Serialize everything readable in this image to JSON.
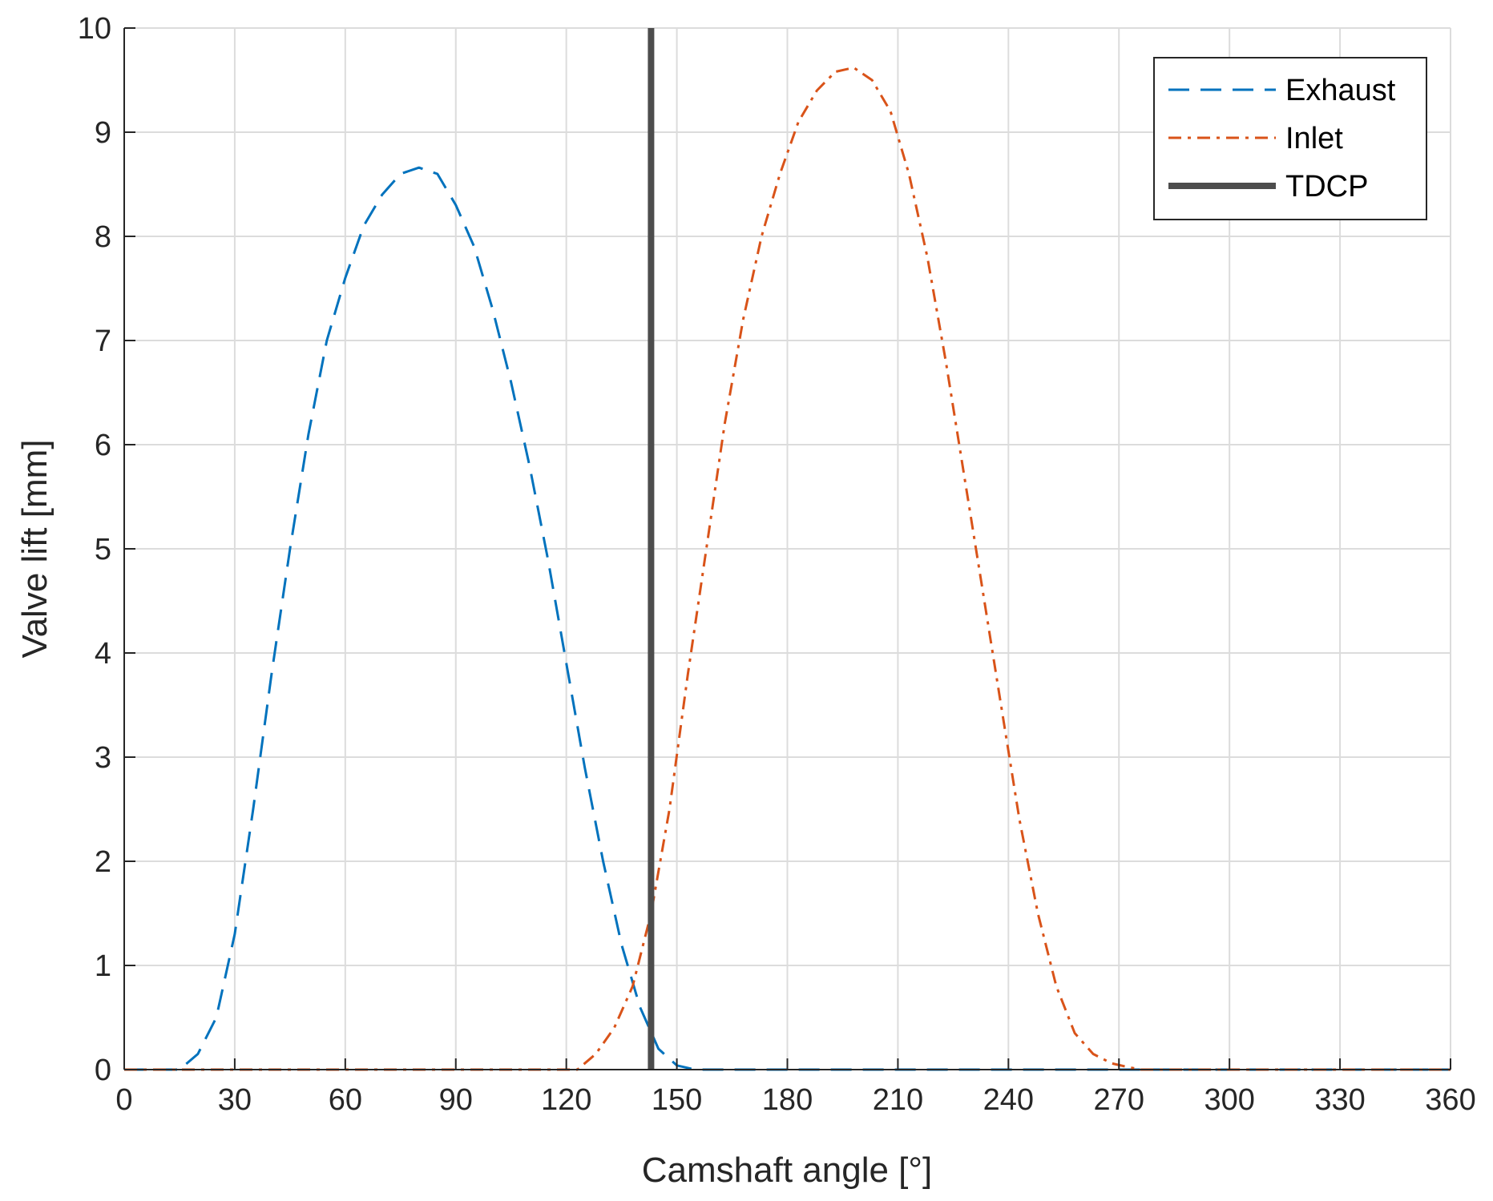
{
  "chart_data": {
    "type": "line",
    "xlabel": "Camshaft angle [°]",
    "ylabel": "Valve lift [mm]",
    "xlim": [
      0,
      360
    ],
    "ylim": [
      0,
      10
    ],
    "xticks": [
      0,
      30,
      60,
      90,
      120,
      150,
      180,
      210,
      240,
      270,
      300,
      330,
      360
    ],
    "yticks": [
      0,
      1,
      2,
      3,
      4,
      5,
      6,
      7,
      8,
      9,
      10
    ],
    "grid": true,
    "legend_position": "top-right",
    "series": [
      {
        "name": "Exhaust",
        "color": "#0072BD",
        "style": "dashed",
        "x": [
          0,
          15,
          20,
          25,
          30,
          35,
          40,
          45,
          50,
          55,
          60,
          65,
          70,
          75,
          80,
          85,
          90,
          95,
          100,
          105,
          110,
          115,
          120,
          125,
          130,
          135,
          140,
          145,
          150,
          155,
          158,
          165,
          180,
          210,
          240,
          270,
          300,
          330,
          360
        ],
        "y": [
          0,
          0,
          0.15,
          0.5,
          1.3,
          2.5,
          3.8,
          5.0,
          6.1,
          7.0,
          7.6,
          8.1,
          8.4,
          8.6,
          8.66,
          8.6,
          8.3,
          7.9,
          7.3,
          6.6,
          5.8,
          4.9,
          3.9,
          2.9,
          2.0,
          1.2,
          0.6,
          0.2,
          0.04,
          0,
          0,
          0,
          0,
          0,
          0,
          0,
          0,
          0,
          0
        ]
      },
      {
        "name": "Inlet",
        "color": "#D95319",
        "style": "dash-dot",
        "x": [
          0,
          30,
          60,
          90,
          120,
          123,
          128,
          133,
          138,
          143,
          148,
          153,
          158,
          163,
          168,
          173,
          178,
          183,
          188,
          193,
          198,
          203,
          208,
          213,
          218,
          223,
          228,
          233,
          238,
          243,
          248,
          253,
          258,
          263,
          268,
          273,
          276,
          300,
          330,
          360
        ],
        "y": [
          0,
          0,
          0,
          0,
          0,
          0,
          0.15,
          0.4,
          0.8,
          1.5,
          2.5,
          3.8,
          5.0,
          6.2,
          7.2,
          8.0,
          8.6,
          9.1,
          9.4,
          9.58,
          9.62,
          9.5,
          9.2,
          8.6,
          7.8,
          6.8,
          5.7,
          4.6,
          3.5,
          2.4,
          1.5,
          0.8,
          0.35,
          0.15,
          0.06,
          0.02,
          0,
          0,
          0,
          0
        ]
      },
      {
        "name": "TDCP",
        "color": "#4D4D4D",
        "style": "solid-thick",
        "x": [
          143,
          143
        ],
        "y": [
          0,
          10
        ]
      }
    ]
  }
}
